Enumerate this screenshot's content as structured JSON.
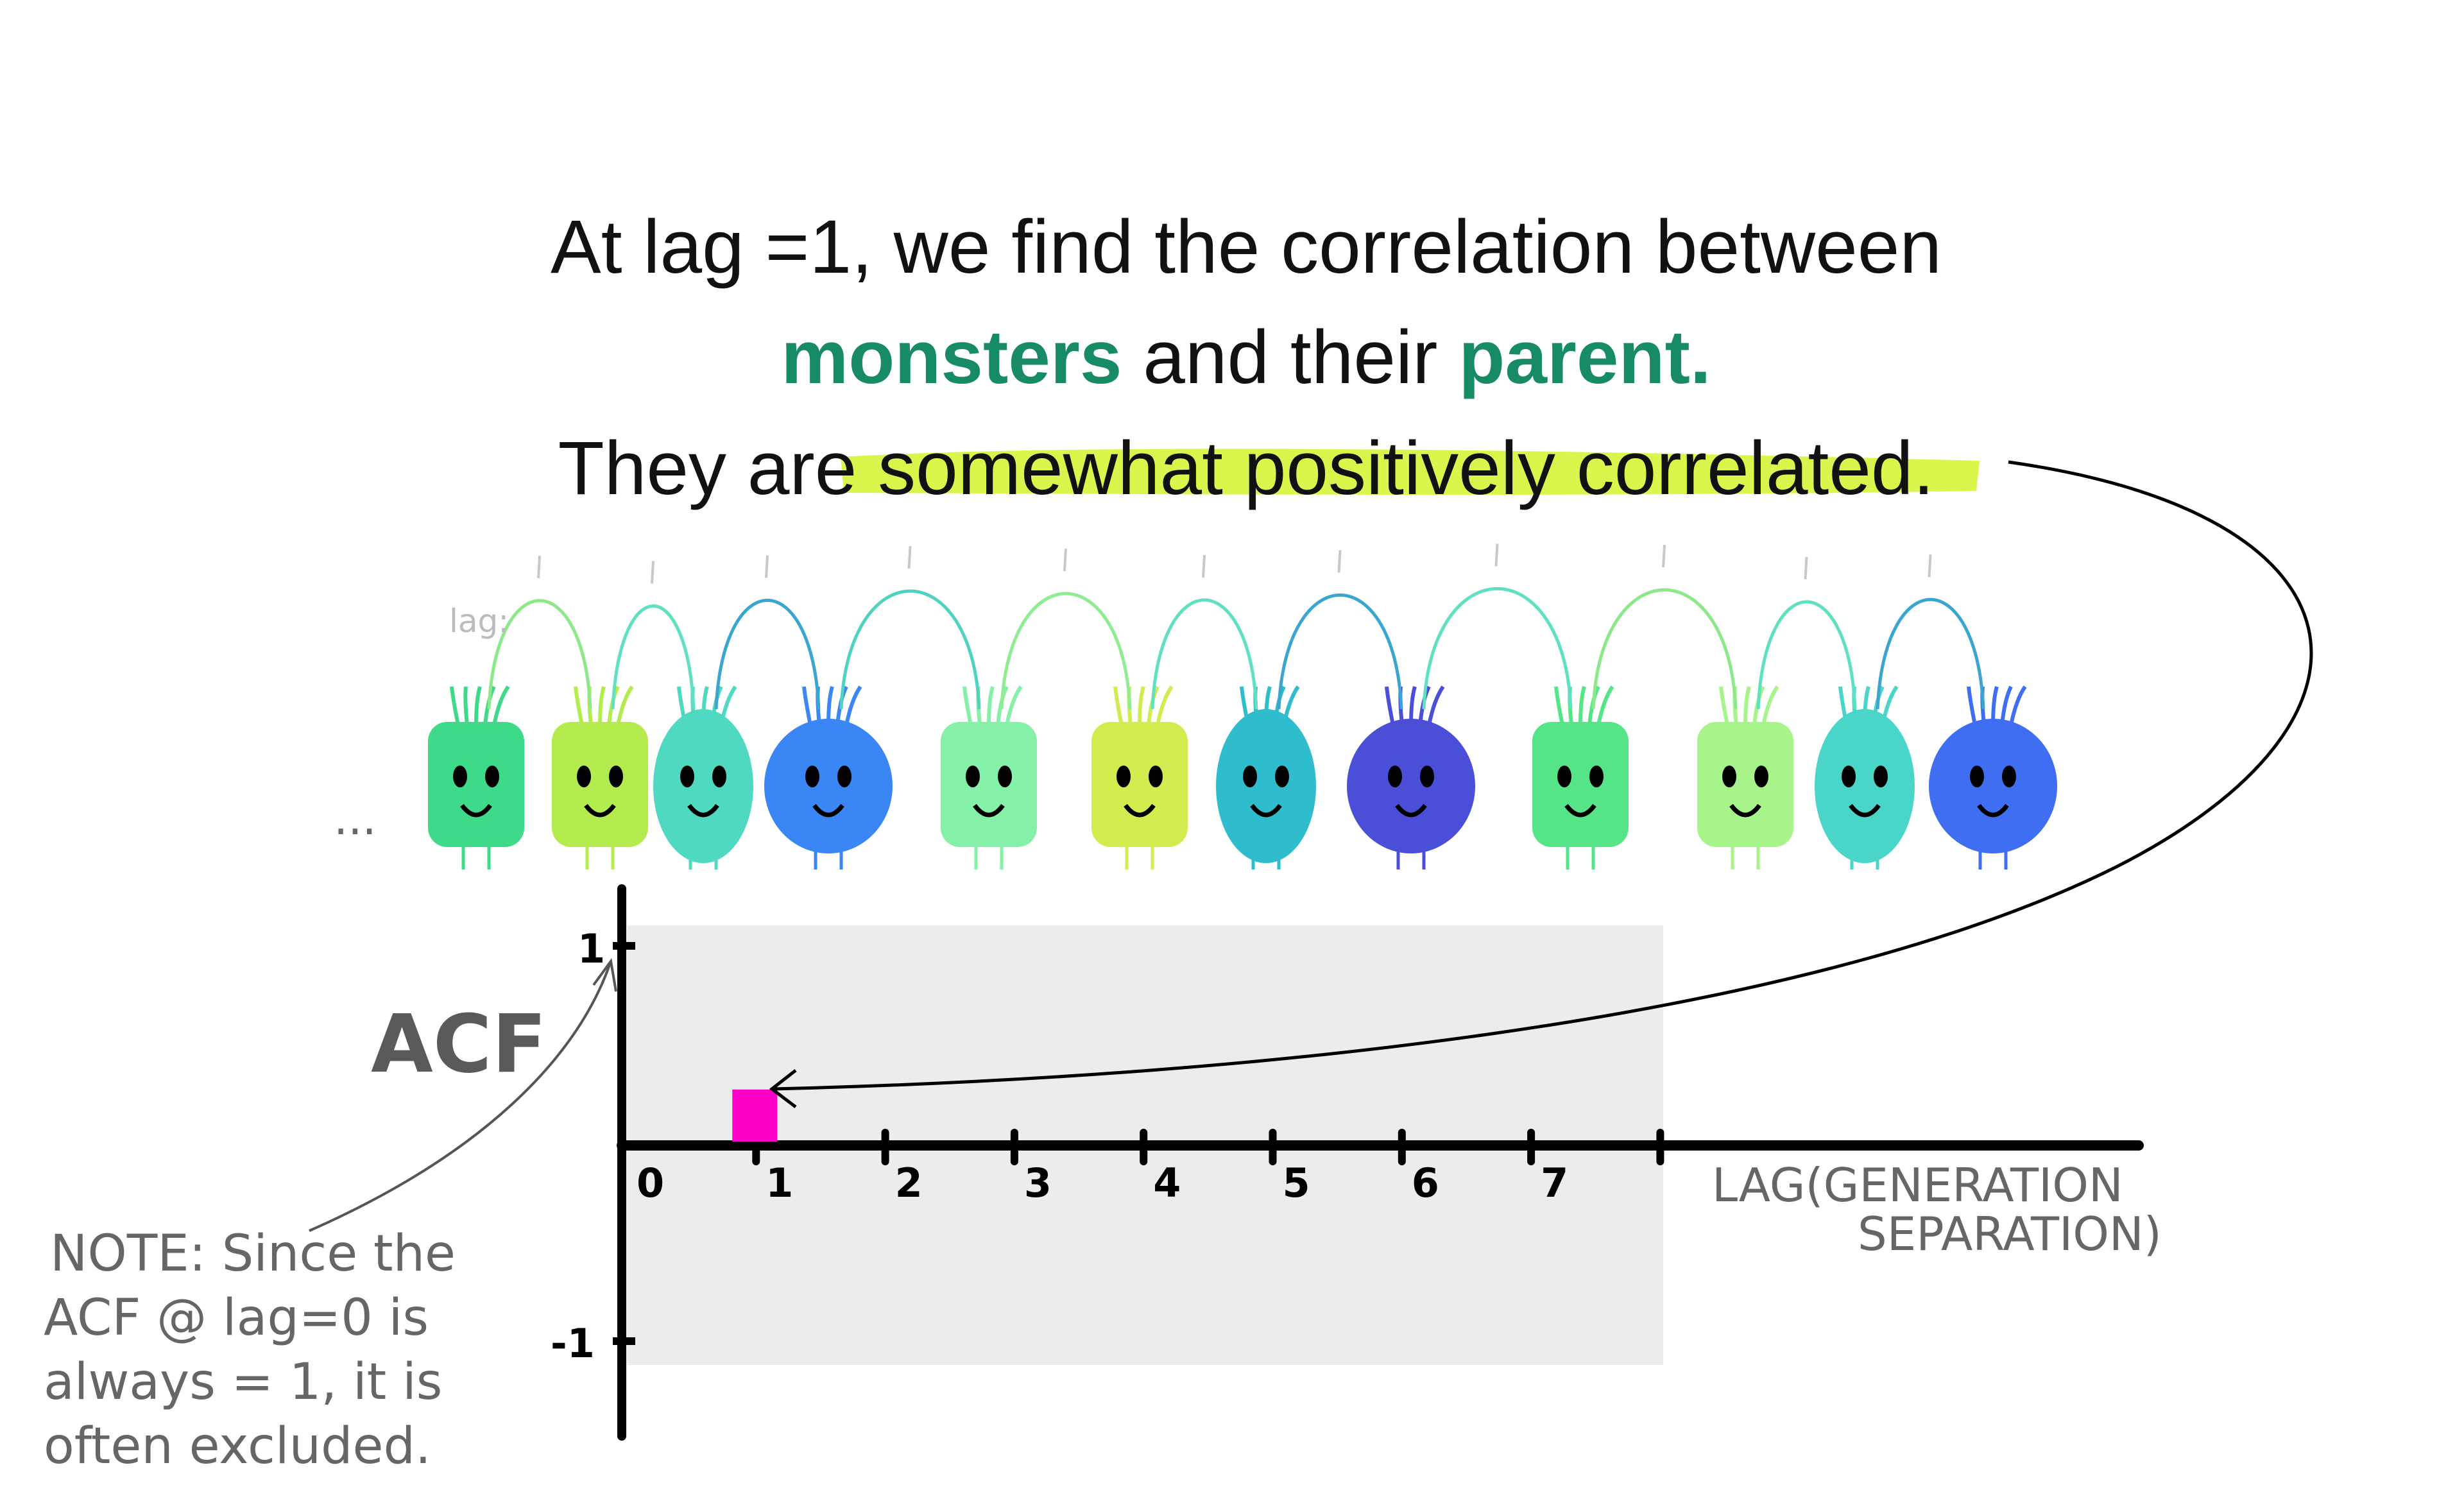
{
  "heading": {
    "line1": "At lag =1, we find the correlation between",
    "line2_part1": "monsters",
    "line2_part2": " and their ",
    "line2_part3": "parent.",
    "line3_part1": "They are ",
    "line3_highlight": "somewhat positively correlated",
    "line3_part2": "."
  },
  "monsters_row": {
    "ellipsis": "...",
    "lag_label": "lag:",
    "monster_colors": [
      "#3fd98a",
      "#b4ec4f",
      "#4fd9c0",
      "#3b86f5",
      "#84f0a8",
      "#d2ec50",
      "#2fbccc",
      "#4b4fd8",
      "#55e487",
      "#a6f48a",
      "#49d6c8",
      "#3f6ef2"
    ],
    "arc_colors": [
      "#8de88a",
      "#5fe0c0",
      "#3aa6d0",
      "#4fd2c0",
      "#90ec90",
      "#5fe0c0",
      "#3aa6d0",
      "#5fe0c0",
      "#8de88a",
      "#5fe0c0",
      "#3aa6d0"
    ]
  },
  "note": {
    "lines": [
      "NOTE: Since the",
      "ACF @ lag=0 is",
      "always = 1, it is",
      "often excluded."
    ]
  },
  "colors": {
    "accent_green": "#178a68",
    "highlight": "#d6f53a",
    "bar": "#ff00c8",
    "panel": "#ececec"
  },
  "chart_data": {
    "type": "bar",
    "ylabel": "ACF",
    "xlabel_line1": "LAG(GENERATION",
    "xlabel_line2": "SEPARATION)",
    "x_ticks": [
      "0",
      "1",
      "2",
      "3",
      "4",
      "5",
      "6",
      "7",
      ""
    ],
    "y_ticks": [
      "1",
      "-1"
    ],
    "xlim": [
      0,
      8
    ],
    "ylim": [
      -1,
      1
    ],
    "lags": [
      1
    ],
    "values": [
      0.28
    ]
  }
}
